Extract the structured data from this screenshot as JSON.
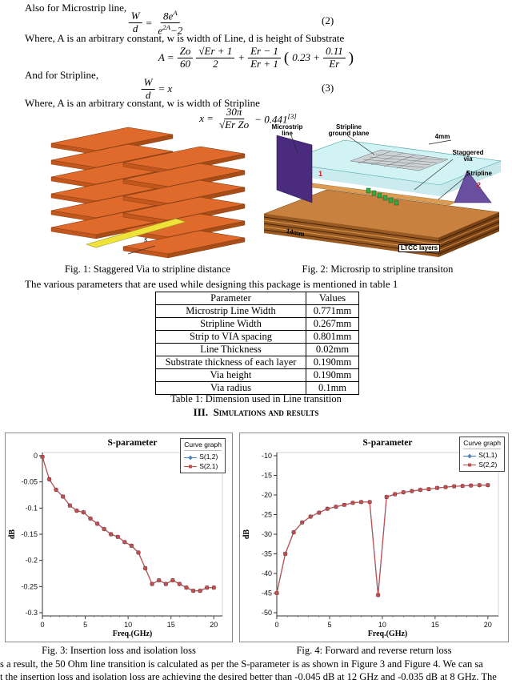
{
  "text": {
    "line1": "Also for Microstrip line,",
    "line2": "Where, A is an arbitrary constant, w is width of Line, d is height of Substrate",
    "line3": "And for Stripline,",
    "line4": "Where, A is an arbitrary constant, w is width of Stripline",
    "para_table": "The various parameters that are used while designing this package is mentioned in table 1",
    "bottom1": "s a result, the 50 Ohm line transition is calculated as per the S-parameter is as shown in Figure 3 and Figure 4. We can sa",
    "bottom2": "t the insertion loss and isolation loss are achieving the desired better than -0.045 dB at 12 GHz and -0.035 dB at 8 GHz. The"
  },
  "equations": {
    "eq2": {
      "lhs_num": "W",
      "lhs_den": "d",
      "op": "=",
      "num_base": "8e",
      "num_sup": "A",
      "den_base": "e",
      "den_sup": "2A",
      "den_tail": "−2",
      "tag": "(2)"
    },
    "eqA": {
      "lhs": "A =",
      "f1n": "Zo",
      "f1d": "60",
      "f2n": "√Er + 1",
      "f2d": "2",
      "plus": "+",
      "f3n": "Er − 1",
      "f3d": "Er + 1",
      "open": "(",
      "c1": "0.23  +",
      "f4n": "0.11",
      "f4d": "Er",
      "close": ")"
    },
    "eq3": {
      "lhs_num": "W",
      "lhs_den": "d",
      "op": "= x",
      "tag": "(3)"
    },
    "eqx": {
      "lhs": "x =",
      "fn": "30π",
      "fd": "√Er Zo",
      "tail": "− 0.441",
      "sup": "[3]"
    }
  },
  "figures": {
    "fig1": {
      "caption": "Fig. 1: Staggered Via to stripline distance",
      "label_s": "s"
    },
    "fig2": {
      "caption": "Fig. 2: Microsrip to stripline transiton",
      "labels": {
        "microstrip": "Microstrip line",
        "ground": "Stripline ground plane",
        "dim4": "4mm",
        "via": "Staggered via",
        "stripline": "Stripline",
        "dim14": "14mm",
        "ltcc": "LTCC layers",
        "n1": "1",
        "n2": "2"
      }
    },
    "fig3": {
      "caption": "Fig. 3: Insertion loss and isolation loss"
    },
    "fig4": {
      "caption": "Fig. 4: Forward and reverse return loss"
    }
  },
  "table": {
    "headers": [
      "Parameter",
      "Values"
    ],
    "rows": [
      [
        "Microstrip Line Width",
        "0.771mm"
      ],
      [
        "Stripline Width",
        "0.267mm"
      ],
      [
        "Strip to VIA spacing",
        "0.801mm"
      ],
      [
        "Line Thickness",
        "0.02mm"
      ],
      [
        "Substrate thickness of each layer",
        "0.190mm"
      ],
      [
        "Via height",
        "0.190mm"
      ],
      [
        "Via radius",
        "0.1mm"
      ]
    ],
    "caption": "Table 1: Dimension used in Line transition"
  },
  "section": {
    "label": "III.",
    "title": "Simulations and results"
  },
  "chart_data": [
    {
      "type": "line",
      "title": "S-parameter",
      "xlabel": "Freq.(GHz)",
      "ylabel": "dB",
      "xlim": [
        0,
        21
      ],
      "ylim": [
        -0.3,
        0
      ],
      "grid": false,
      "legend_position": "top-right",
      "legend_title": "Curve graph",
      "legend_pos": {
        "top": 6,
        "right": 8
      },
      "xticks": [
        [
          0,
          "0"
        ],
        [
          5,
          "5"
        ],
        [
          10,
          "10"
        ],
        [
          15,
          "15"
        ],
        [
          20,
          "20"
        ]
      ],
      "yticks": [
        [
          0,
          "0"
        ],
        [
          -0.05,
          "-0.05"
        ],
        [
          -0.1,
          "-0.1"
        ],
        [
          -0.15,
          "-0.15"
        ],
        [
          -0.2,
          "-0.2"
        ],
        [
          -0.25,
          "-0.25"
        ],
        [
          -0.3,
          "-0.3"
        ]
      ],
      "x": [
        0,
        0.8,
        1.6,
        2.4,
        3.2,
        4,
        4.8,
        5.6,
        6.4,
        7.2,
        8,
        8.8,
        9.6,
        10.4,
        11.2,
        12,
        12.8,
        13.6,
        14.4,
        15.2,
        16,
        16.8,
        17.6,
        18.4,
        19.2,
        20
      ],
      "series": [
        {
          "name": "S(1,2)",
          "color": "#4f81bd",
          "marker": "diamond",
          "values": [
            -0.002,
            -0.045,
            -0.065,
            -0.078,
            -0.095,
            -0.105,
            -0.108,
            -0.12,
            -0.13,
            -0.14,
            -0.15,
            -0.155,
            -0.165,
            -0.172,
            -0.185,
            -0.215,
            -0.245,
            -0.238,
            -0.245,
            -0.238,
            -0.245,
            -0.252,
            -0.258,
            -0.258,
            -0.252,
            -0.252
          ]
        },
        {
          "name": "S(2,1)",
          "color": "#c0504d",
          "marker": "square",
          "values": [
            -0.002,
            -0.045,
            -0.065,
            -0.078,
            -0.095,
            -0.105,
            -0.108,
            -0.12,
            -0.13,
            -0.14,
            -0.15,
            -0.155,
            -0.165,
            -0.172,
            -0.185,
            -0.215,
            -0.245,
            -0.238,
            -0.245,
            -0.238,
            -0.245,
            -0.252,
            -0.258,
            -0.258,
            -0.252,
            -0.252
          ]
        }
      ]
    },
    {
      "type": "line",
      "title": "S-parameter",
      "xlabel": "Freq.(GHz)",
      "ylabel": "dB",
      "xlim": [
        0,
        21
      ],
      "ylim": [
        -50,
        -10
      ],
      "grid": false,
      "legend_position": "top-right",
      "legend_title": "Curve graph",
      "legend_pos": {
        "top": 4,
        "right": 4
      },
      "xticks": [
        [
          0,
          "0"
        ],
        [
          5,
          "5"
        ],
        [
          10,
          "10"
        ],
        [
          15,
          "15"
        ],
        [
          20,
          "20"
        ]
      ],
      "yticks": [
        [
          -10,
          "-10"
        ],
        [
          -15,
          "-15"
        ],
        [
          -20,
          "-20"
        ],
        [
          -25,
          "-25"
        ],
        [
          -30,
          "-30"
        ],
        [
          -35,
          "-35"
        ],
        [
          -40,
          "-40"
        ],
        [
          -45,
          "-45"
        ],
        [
          -50,
          "-50"
        ]
      ],
      "x": [
        0,
        0.8,
        1.6,
        2.4,
        3.2,
        4,
        4.8,
        5.6,
        6.4,
        7.2,
        8,
        8.8,
        9.6,
        10.4,
        11.2,
        12,
        12.8,
        13.6,
        14.4,
        15.2,
        16,
        16.8,
        17.6,
        18.4,
        19.2,
        20
      ],
      "series": [
        {
          "name": "S(1,1)",
          "color": "#4f81bd",
          "marker": "diamond",
          "values": [
            -45,
            -35,
            -29.5,
            -27,
            -25.5,
            -24.5,
            -23.5,
            -23,
            -22.5,
            -22,
            -21.8,
            -21.8,
            -45.5,
            -20.5,
            -19.8,
            -19.3,
            -19,
            -18.7,
            -18.5,
            -18.2,
            -18,
            -17.8,
            -17.7,
            -17.6,
            -17.5,
            -17.5
          ]
        },
        {
          "name": "S(2,2)",
          "color": "#c0504d",
          "marker": "square",
          "values": [
            -45,
            -35,
            -29.5,
            -27,
            -25.5,
            -24.5,
            -23.5,
            -23,
            -22.5,
            -22,
            -21.8,
            -21.8,
            -45.5,
            -20.5,
            -19.8,
            -19.3,
            -19,
            -18.7,
            -18.5,
            -18.2,
            -18,
            -17.8,
            -17.7,
            -17.6,
            -17.5,
            -17.5
          ]
        }
      ]
    }
  ]
}
